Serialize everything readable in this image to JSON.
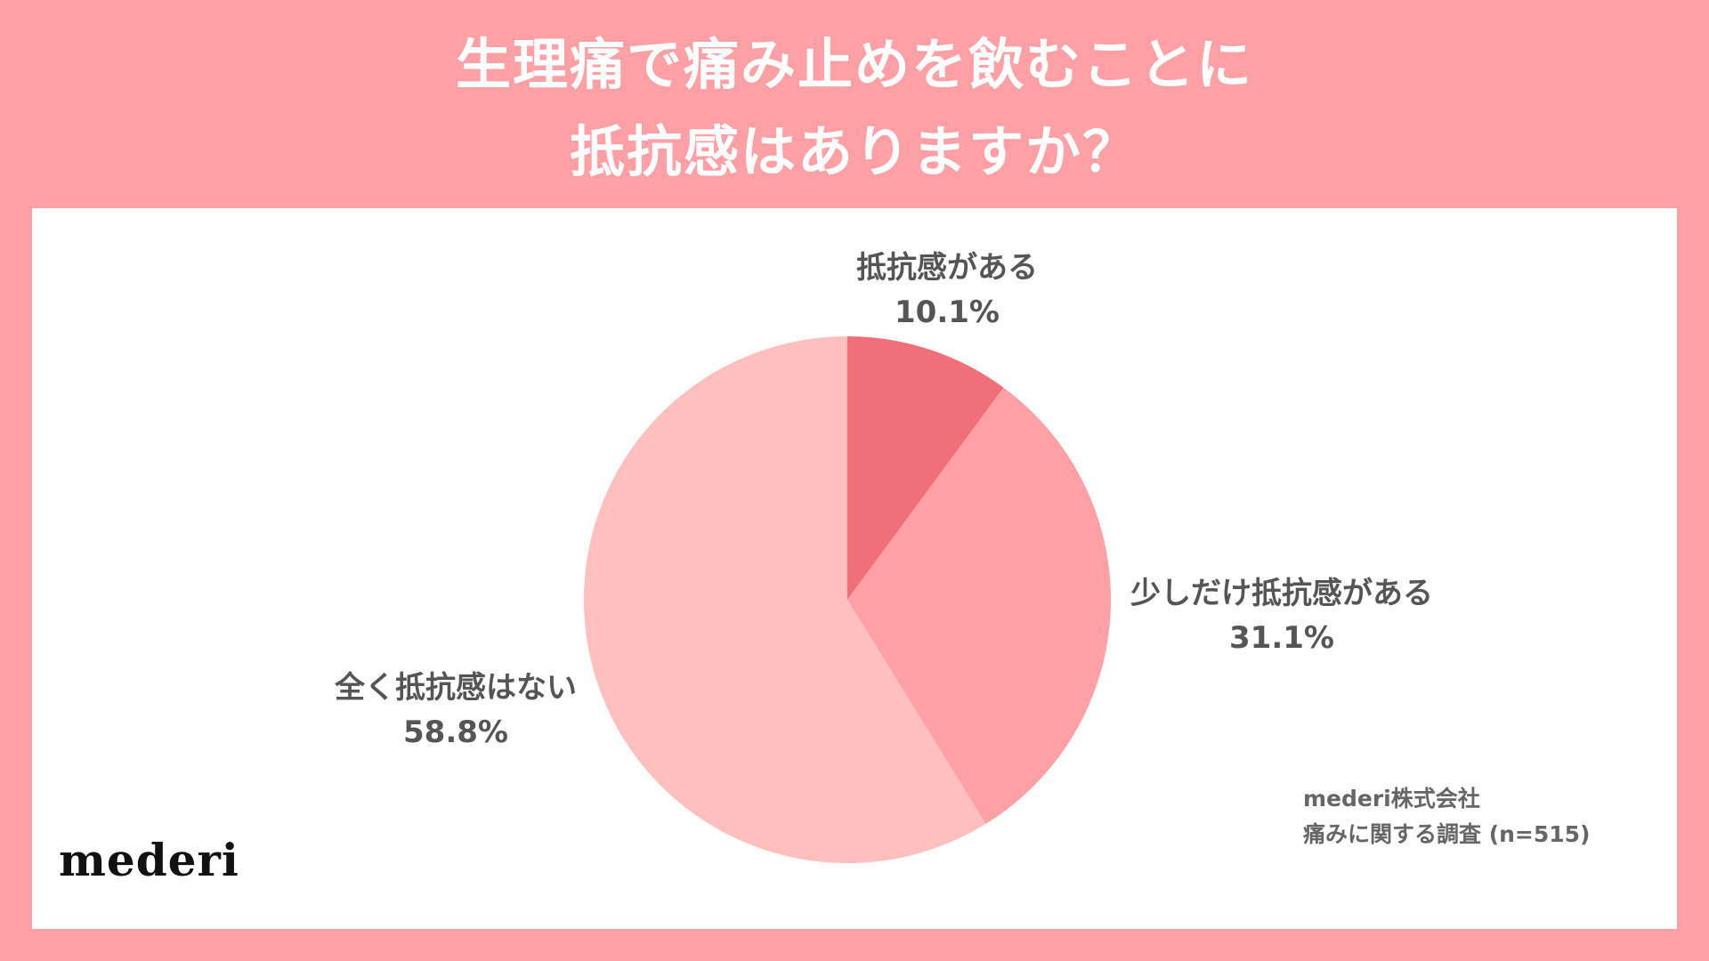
{
  "title": {
    "line1": "生理痛で痛み止めを飲むことに",
    "line2": "抵抗感はありますか？"
  },
  "colors": {
    "background": "#ffa0a7",
    "panel": "#ffffff",
    "title_text": "#ffffff",
    "label_text": "#555555"
  },
  "chart_data": {
    "type": "pie",
    "title": "生理痛で痛み止めを飲むことに抵抗感はありますか？",
    "start": "top (12 o'clock), clockwise",
    "slices": [
      {
        "label": "抵抗感がある",
        "value": 10.1,
        "display": "10.1%",
        "color": "#f06f78"
      },
      {
        "label": "少しだけ抵抗感がある",
        "value": 31.1,
        "display": "31.1%",
        "color": "#ffa0a7"
      },
      {
        "label": "全く抵抗感はない",
        "value": 58.8,
        "display": "58.8%",
        "color": "#ffbfbe"
      }
    ]
  },
  "source": {
    "line1": "mederi株式会社",
    "line2": "痛みに関する調査 (n=515)"
  },
  "logo": "mederi"
}
